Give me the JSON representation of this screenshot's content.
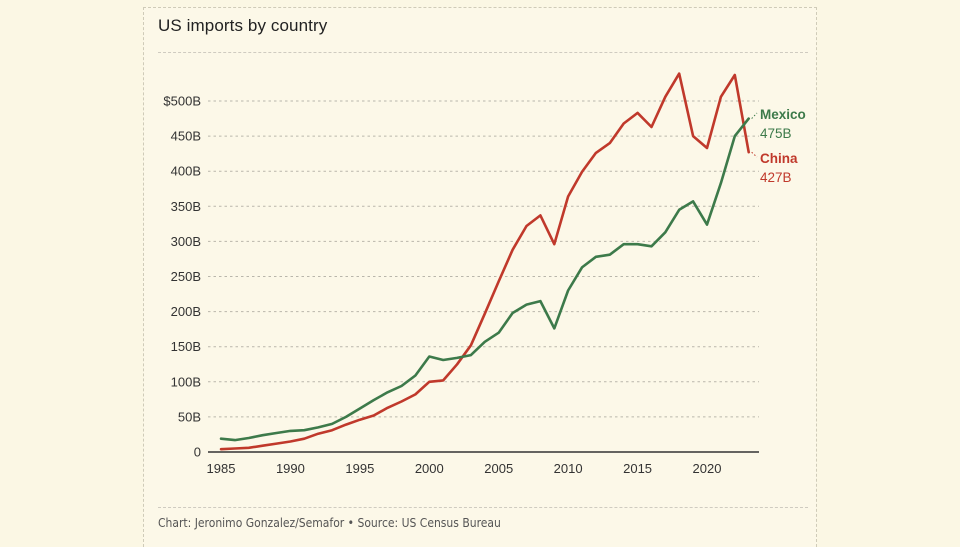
{
  "title": "US imports by country",
  "footer": "Chart: Jeronimo Gonzalez/Semafor • Source: US Census Bureau",
  "chart_data": {
    "type": "line",
    "title": "US imports by country",
    "xlabel": "",
    "ylabel": "",
    "xlim": [
      1985,
      2023
    ],
    "ylim": [
      0,
      500
    ],
    "grid": true,
    "legend": "direct-labels-right",
    "x_ticks": [
      1985,
      1990,
      1995,
      2000,
      2005,
      2010,
      2015,
      2020
    ],
    "x_tick_labels": [
      "1985",
      "1990",
      "1995",
      "2000",
      "2005",
      "2010",
      "2015",
      "2020"
    ],
    "y_ticks": [
      0,
      50,
      100,
      150,
      200,
      250,
      300,
      350,
      400,
      450,
      500
    ],
    "y_tick_labels": [
      "0",
      "50B",
      "100B",
      "150B",
      "200B",
      "250B",
      "300B",
      "350B",
      "400B",
      "450B",
      "$500B"
    ],
    "x": [
      1985,
      1986,
      1987,
      1988,
      1989,
      1990,
      1991,
      1992,
      1993,
      1994,
      1995,
      1996,
      1997,
      1998,
      1999,
      2000,
      2001,
      2002,
      2003,
      2004,
      2005,
      2006,
      2007,
      2008,
      2009,
      2010,
      2011,
      2012,
      2013,
      2014,
      2015,
      2016,
      2017,
      2018,
      2019,
      2020,
      2021,
      2022,
      2023
    ],
    "series": [
      {
        "name": "Mexico",
        "color": "#3d7a4a",
        "end_label": "475B",
        "values": [
          19,
          17,
          20,
          24,
          27,
          30,
          31,
          35,
          40,
          50,
          62,
          74,
          85,
          94,
          109,
          136,
          131,
          134,
          138,
          157,
          170,
          198,
          210,
          215,
          176,
          230,
          263,
          278,
          281,
          296,
          296,
          293,
          313,
          345,
          357,
          324,
          383,
          450,
          475
        ]
      },
      {
        "name": "China",
        "color": "#c0392b",
        "end_label": "427B",
        "values": [
          4,
          5,
          6,
          9,
          12,
          15,
          19,
          26,
          31,
          39,
          46,
          52,
          63,
          72,
          82,
          100,
          102,
          125,
          152,
          197,
          243,
          288,
          322,
          337,
          296,
          364,
          399,
          426,
          440,
          468,
          483,
          463,
          506,
          539,
          450,
          433,
          506,
          537,
          427
        ]
      }
    ]
  }
}
